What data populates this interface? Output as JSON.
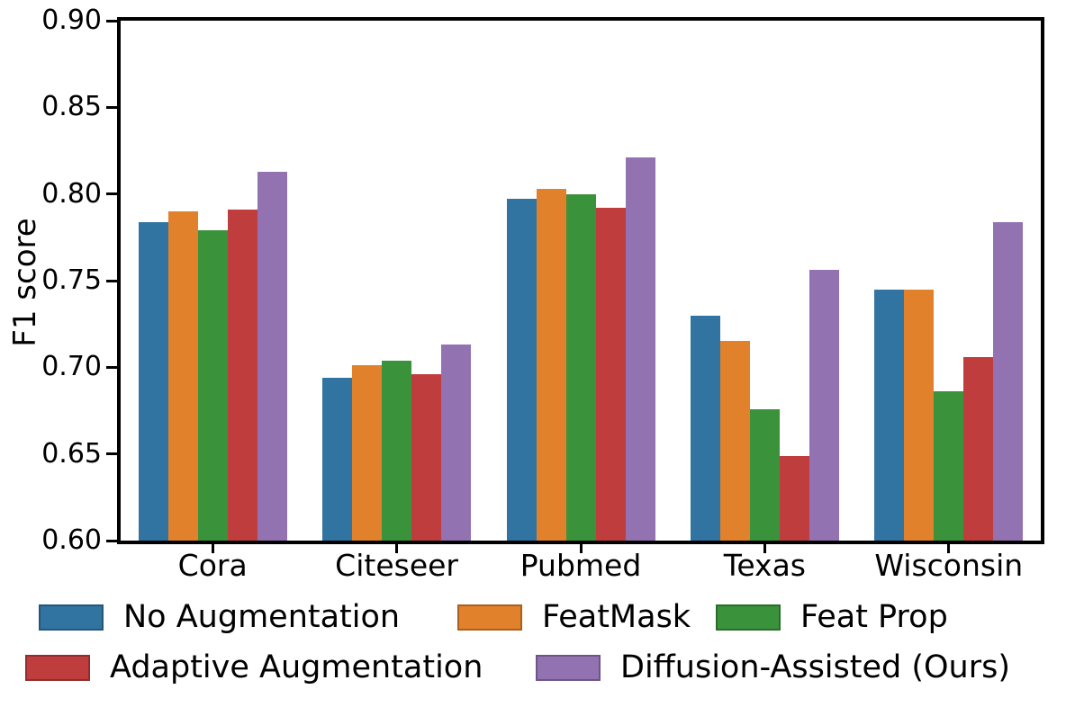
{
  "chart_data": {
    "type": "bar",
    "title": "",
    "xlabel": "",
    "ylabel": "F1 score",
    "categories": [
      "Cora",
      "Citeseer",
      "Pubmed",
      "Texas",
      "Wisconsin"
    ],
    "series": [
      {
        "name": "No Augmentation",
        "color": "#3274a1",
        "values": [
          0.784,
          0.694,
          0.797,
          0.73,
          0.745
        ]
      },
      {
        "name": "FeatMask",
        "color": "#e1812c",
        "values": [
          0.79,
          0.701,
          0.803,
          0.715,
          0.745
        ]
      },
      {
        "name": "Feat Prop",
        "color": "#3a923a",
        "values": [
          0.779,
          0.704,
          0.8,
          0.676,
          0.686
        ]
      },
      {
        "name": "Adaptive Augmentation",
        "color": "#c03d3e",
        "values": [
          0.791,
          0.696,
          0.792,
          0.649,
          0.706
        ]
      },
      {
        "name": "Diffusion-Assisted (Ours)",
        "color": "#9372b2",
        "values": [
          0.813,
          0.713,
          0.821,
          0.756,
          0.784
        ]
      }
    ],
    "ylim": [
      0.6,
      0.9
    ],
    "yticks": [
      "0.60",
      "0.65",
      "0.70",
      "0.75",
      "0.80",
      "0.85",
      "0.90"
    ],
    "grid": false,
    "legend_position": "bottom",
    "axis_color": "#000000",
    "background": "#ffffff"
  }
}
